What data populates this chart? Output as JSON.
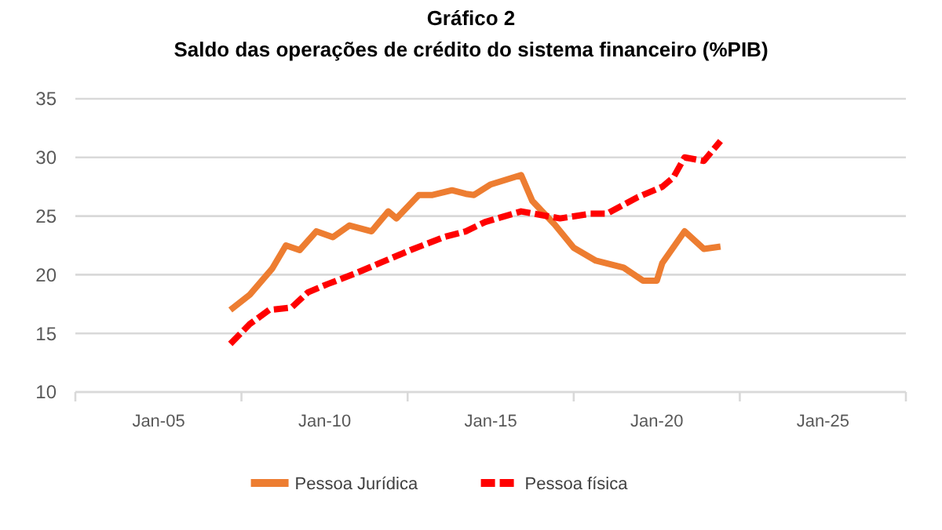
{
  "chart_data": {
    "type": "line",
    "title": "Gráfico 2",
    "subtitle": "Saldo das operações de crédito do sistema financeiro (%PIB)",
    "xlim": [
      "2002-07",
      "2027-07"
    ],
    "xticks": [
      {
        "value": "2002-07",
        "label": null
      },
      {
        "value": "2005-01",
        "label": "Jan-05"
      },
      {
        "value": "2007-07",
        "label": null
      },
      {
        "value": "2010-01",
        "label": "Jan-10"
      },
      {
        "value": "2012-07",
        "label": null
      },
      {
        "value": "2015-01",
        "label": "Jan-15"
      },
      {
        "value": "2017-07",
        "label": null
      },
      {
        "value": "2020-01",
        "label": "Jan-20"
      },
      {
        "value": "2022-07",
        "label": null
      },
      {
        "value": "2025-01",
        "label": "Jan-25"
      },
      {
        "value": "2027-07",
        "label": null
      }
    ],
    "ylim": [
      10,
      35
    ],
    "yticks": [
      10,
      15,
      20,
      25,
      30,
      35
    ],
    "grid": "y",
    "legend": "bottom",
    "series": [
      {
        "name": "Pessoa Jurídica",
        "color": "#ed7d31",
        "line_style": "solid",
        "x": [
          "2007-03",
          "2007-10",
          "2008-06",
          "2008-11",
          "2009-04",
          "2009-10",
          "2010-04",
          "2010-10",
          "2011-06",
          "2011-12",
          "2012-03",
          "2012-11",
          "2013-04",
          "2013-11",
          "2014-04",
          "2014-07",
          "2015-01",
          "2015-12",
          "2016-04",
          "2016-12",
          "2017-07",
          "2018-03",
          "2019-01",
          "2019-08",
          "2020-01",
          "2020-03",
          "2020-11",
          "2021-06",
          "2021-12"
        ],
        "values": [
          17.0,
          18.3,
          20.5,
          22.5,
          22.1,
          23.7,
          23.2,
          24.2,
          23.7,
          25.4,
          24.8,
          26.8,
          26.8,
          27.2,
          26.9,
          26.8,
          27.7,
          28.5,
          26.3,
          24.3,
          22.3,
          21.2,
          20.6,
          19.5,
          19.5,
          21.0,
          23.7,
          22.2,
          22.4
        ]
      },
      {
        "name": "Pessoa física",
        "color": "#ff0000",
        "line_style": "dashed",
        "x": [
          "2007-03",
          "2007-10",
          "2008-05",
          "2009-01",
          "2009-07",
          "2010-02",
          "2010-12",
          "2011-09",
          "2012-08",
          "2013-08",
          "2014-04",
          "2014-11",
          "2015-12",
          "2017-02",
          "2018-01",
          "2018-07",
          "2019-06",
          "2020-03",
          "2020-07",
          "2020-11",
          "2021-06",
          "2021-12"
        ],
        "values": [
          14.1,
          15.8,
          17.0,
          17.2,
          18.5,
          19.2,
          20.1,
          21.0,
          22.1,
          23.2,
          23.7,
          24.5,
          25.4,
          24.8,
          25.2,
          25.2,
          26.6,
          27.5,
          28.3,
          30.0,
          29.7,
          31.4
        ]
      }
    ]
  }
}
